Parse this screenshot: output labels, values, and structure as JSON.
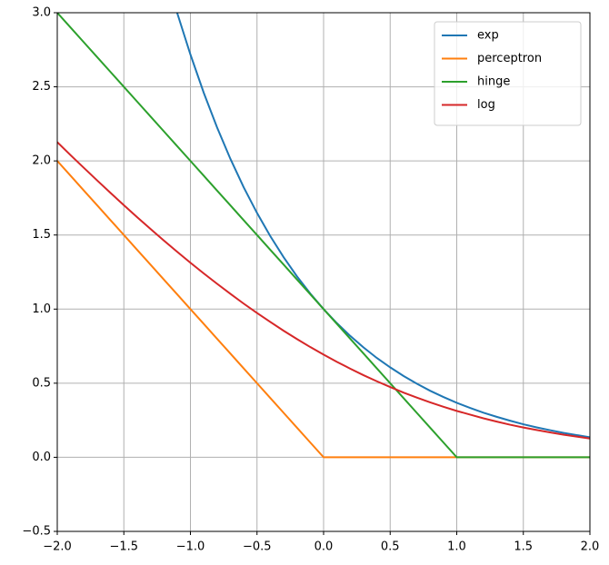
{
  "chart_data": {
    "type": "line",
    "x": [
      -2.0,
      -1.9,
      -1.8,
      -1.7,
      -1.6,
      -1.5,
      -1.4,
      -1.3,
      -1.2,
      -1.1,
      -1.0,
      -0.9,
      -0.8,
      -0.7,
      -0.6,
      -0.5,
      -0.4,
      -0.3,
      -0.2,
      -0.1,
      0.0,
      0.1,
      0.2,
      0.3,
      0.4,
      0.5,
      0.6,
      0.7,
      0.8,
      0.9,
      1.0,
      1.1,
      1.2,
      1.3,
      1.4,
      1.5,
      1.6,
      1.7,
      1.8,
      1.9,
      2.0
    ],
    "series": [
      {
        "name": "exp",
        "color": "#1f77b4",
        "values": [
          null,
          null,
          null,
          null,
          null,
          null,
          null,
          null,
          null,
          3.0,
          2.718,
          2.46,
          2.226,
          2.014,
          1.822,
          1.649,
          1.492,
          1.35,
          1.221,
          1.105,
          1.0,
          0.905,
          0.819,
          0.741,
          0.67,
          0.607,
          0.549,
          0.497,
          0.449,
          0.407,
          0.368,
          0.333,
          0.301,
          0.273,
          0.247,
          0.223,
          0.202,
          0.183,
          0.165,
          0.15,
          0.135
        ]
      },
      {
        "name": "perceptron",
        "color": "#ff7f0e",
        "values": [
          2.0,
          1.9,
          1.8,
          1.7,
          1.6,
          1.5,
          1.4,
          1.3,
          1.2,
          1.1,
          1.0,
          0.9,
          0.8,
          0.7,
          0.6,
          0.5,
          0.4,
          0.3,
          0.2,
          0.1,
          0.0,
          0,
          0,
          0,
          0,
          0,
          0,
          0,
          0,
          0,
          0,
          0,
          0,
          0,
          0,
          0,
          0,
          0,
          0,
          0,
          0
        ]
      },
      {
        "name": "hinge",
        "color": "#2ca02c",
        "values": [
          3.0,
          2.9,
          2.8,
          2.7,
          2.6,
          2.5,
          2.4,
          2.3,
          2.2,
          2.1,
          2.0,
          1.9,
          1.8,
          1.7,
          1.6,
          1.5,
          1.4,
          1.3,
          1.2,
          1.1,
          1.0,
          0.9,
          0.8,
          0.7,
          0.6,
          0.5,
          0.4,
          0.3,
          0.2,
          0.1,
          0.0,
          0,
          0,
          0,
          0,
          0,
          0,
          0,
          0,
          0,
          0
        ]
      },
      {
        "name": "log",
        "color": "#d62728",
        "values": [
          2.127,
          2.039,
          1.953,
          1.868,
          1.784,
          1.701,
          1.62,
          1.541,
          1.463,
          1.387,
          1.313,
          1.241,
          1.171,
          1.103,
          1.037,
          0.974,
          0.913,
          0.854,
          0.798,
          0.744,
          0.693,
          0.644,
          0.598,
          0.554,
          0.513,
          0.474,
          0.437,
          0.403,
          0.371,
          0.341,
          0.313,
          0.288,
          0.263,
          0.241,
          0.22,
          0.201,
          0.184,
          0.168,
          0.153,
          0.14,
          0.127
        ]
      }
    ],
    "xlim": [
      -2.0,
      2.0
    ],
    "ylim": [
      -0.5,
      3.0
    ],
    "xticks": [
      {
        "value": -2.0,
        "label": "−2.0"
      },
      {
        "value": -1.5,
        "label": "−1.5"
      },
      {
        "value": -1.0,
        "label": "−1.0"
      },
      {
        "value": -0.5,
        "label": "−0.5"
      },
      {
        "value": 0.0,
        "label": "0.0"
      },
      0.5,
      {
        "value": 1.0,
        "label": "1.0"
      },
      1.5,
      {
        "value": 2.0,
        "label": "2.0"
      }
    ],
    "yticks": [
      {
        "value": -0.5,
        "label": "−0.5"
      },
      {
        "value": 0.0,
        "label": "0.0"
      },
      0.5,
      {
        "value": 1.0,
        "label": "1.0"
      },
      1.5,
      {
        "value": 2.0,
        "label": "2.0"
      },
      2.5,
      {
        "value": 3.0,
        "label": "3.0"
      }
    ],
    "grid": true,
    "legend": "upper right"
  }
}
